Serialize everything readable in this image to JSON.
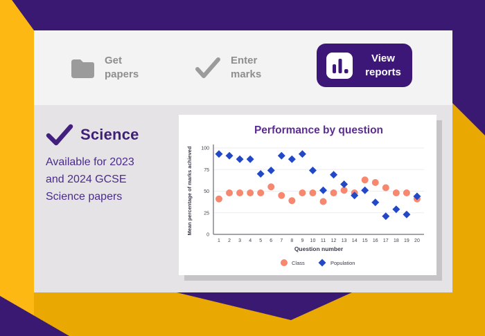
{
  "header": {
    "steps": [
      {
        "label": "Get papers",
        "icon": "folder-icon"
      },
      {
        "label": "Enter marks",
        "icon": "check-icon"
      },
      {
        "label": "View reports",
        "icon": "bar-chart-icon",
        "active": true
      }
    ]
  },
  "subject": {
    "title": "Science",
    "description": "Available for 2023 and 2024 GCSE Science papers"
  },
  "chart_data": {
    "type": "scatter",
    "title": "Performance by question",
    "xlabel": "Question number",
    "ylabel": "Mean percentage of marks achieved",
    "x": [
      1,
      2,
      3,
      4,
      5,
      6,
      7,
      8,
      9,
      10,
      11,
      12,
      13,
      14,
      15,
      16,
      17,
      18,
      19,
      20
    ],
    "yticks": [
      0,
      25,
      50,
      75,
      100
    ],
    "ylim": [
      0,
      100
    ],
    "grid": "horizontal",
    "legend_position": "bottom",
    "series": [
      {
        "name": "Class",
        "marker": "circle",
        "color": "#F5886E",
        "values": [
          41,
          48,
          48,
          48,
          48,
          55,
          45,
          39,
          48,
          48,
          38,
          48,
          51,
          48,
          63,
          60,
          54,
          48,
          48,
          41
        ]
      },
      {
        "name": "Population",
        "marker": "diamond",
        "color": "#2348C6",
        "values": [
          93,
          91,
          87,
          87,
          70,
          74,
          91,
          87,
          93,
          74,
          51,
          69,
          58,
          45,
          51,
          37,
          21,
          29,
          23,
          44
        ]
      }
    ]
  },
  "colors": {
    "yellow_base": "#E9A802",
    "yellow_bright": "#FDB813",
    "purple_dark": "#3A1973",
    "button_purple": "#3D1778",
    "title_purple": "#5C2D91",
    "heading_purple": "#3F1E78",
    "body_purple": "#4A2B8A",
    "nav_gray_text": "#8E8E8E",
    "icon_gray": "#9B9B9B",
    "card_top": "#F4F3F4",
    "card_body": "#E5E3E6",
    "panel_shadow": "#C6C4C6",
    "axis_gray": "#85858F",
    "tick_text": "#3F3F4D",
    "gridline": "#EDEDEF"
  }
}
